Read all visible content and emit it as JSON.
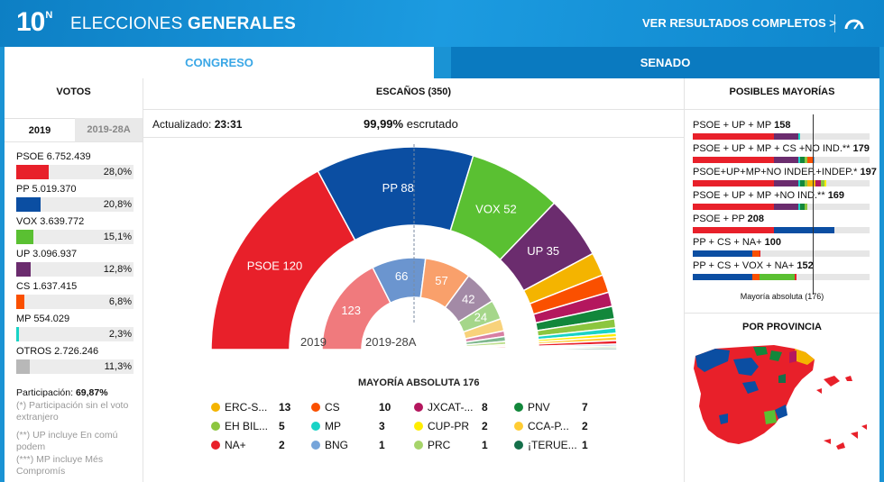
{
  "header": {
    "logo_num": "10",
    "logo_sup": "N",
    "title_light": "ELECCIONES ",
    "title_bold": "GENERALES",
    "results_link": "VER RESULTADOS COMPLETOS >"
  },
  "tabs": [
    {
      "label": "CONGRESO",
      "active": true
    },
    {
      "label": "SENADO",
      "active": false
    }
  ],
  "votes": {
    "heading": "VOTOS",
    "year_tabs": [
      "2019",
      "2019-28A"
    ],
    "parties": [
      {
        "name": "PSOE",
        "votes": "6.752.439",
        "pct": "28,0%",
        "share": 28.0,
        "color": "#e8202a"
      },
      {
        "name": "PP",
        "votes": "5.019.370",
        "pct": "20,8%",
        "share": 20.8,
        "color": "#0b4ea2"
      },
      {
        "name": "VOX",
        "votes": "3.639.772",
        "pct": "15,1%",
        "share": 15.1,
        "color": "#5ac032"
      },
      {
        "name": "UP",
        "votes": "3.096.937",
        "pct": "12,8%",
        "share": 12.8,
        "color": "#6b2c6e"
      },
      {
        "name": "CS",
        "votes": "1.637.415",
        "pct": "6,8%",
        "share": 6.8,
        "color": "#fa5000"
      },
      {
        "name": "MP",
        "votes": "554.029",
        "pct": "2,3%",
        "share": 2.3,
        "color": "#19d3c6"
      },
      {
        "name": "OTROS",
        "votes": "2.726.246",
        "pct": "11,3%",
        "share": 11.3,
        "color": "#b8b8b8"
      }
    ],
    "participation_label": "Participación:",
    "participation_value": "69,87%",
    "notes": [
      "(*) Participación sin el voto extranjero",
      "(**) UP incluye En comú podem",
      "(***) MP incluye Més Compromís"
    ]
  },
  "seats": {
    "heading": "ESCAÑOS (350)",
    "updated_label": "Actualizado:",
    "updated_time": "23:31",
    "scrutiny_pct": "99,99%",
    "scrutiny_label": "escrutado",
    "label_2019": "2019",
    "label_2019_28a": "2019-28A",
    "majority_label": "MAYORÍA ABSOLUTA 176",
    "legend": [
      {
        "name": "ERC-S...",
        "seats": "13",
        "color": "#f4b400"
      },
      {
        "name": "CS",
        "seats": "10",
        "color": "#fa5000"
      },
      {
        "name": "JXCAT-...",
        "seats": "8",
        "color": "#b4175e"
      },
      {
        "name": "PNV",
        "seats": "7",
        "color": "#12873b"
      },
      {
        "name": "EH BIL...",
        "seats": "5",
        "color": "#8cc63f"
      },
      {
        "name": "MP",
        "seats": "3",
        "color": "#19d3c6"
      },
      {
        "name": "CUP-PR",
        "seats": "2",
        "color": "#ffed00"
      },
      {
        "name": "CCA-P...",
        "seats": "2",
        "color": "#ffcc33"
      },
      {
        "name": "NA+",
        "seats": "2",
        "color": "#e8202a"
      },
      {
        "name": "BNG",
        "seats": "1",
        "color": "#76a5da"
      },
      {
        "name": "PRC",
        "seats": "1",
        "color": "#a6d46a"
      },
      {
        "name": "¡TERUE...",
        "seats": "1",
        "color": "#156f4a"
      }
    ]
  },
  "chart_data": [
    {
      "type": "pie",
      "title": "ESCAÑOS (350)",
      "subtitle": "2019",
      "categories": [
        "PSOE",
        "PP",
        "VOX",
        "UP",
        "ERC-S...",
        "CS",
        "JXCAT-...",
        "PNV",
        "EH BIL...",
        "MP",
        "CUP-PR",
        "CCA-P...",
        "NA+",
        "BNG",
        "PRC",
        "¡TERUE..."
      ],
      "values": [
        120,
        88,
        52,
        35,
        13,
        10,
        8,
        7,
        5,
        3,
        2,
        2,
        2,
        1,
        1,
        1
      ],
      "colors": [
        "#e8202a",
        "#0b4ea2",
        "#5ac032",
        "#6b2c6e",
        "#f4b400",
        "#fa5000",
        "#b4175e",
        "#12873b",
        "#8cc63f",
        "#19d3c6",
        "#ffed00",
        "#ffcc33",
        "#e8202a",
        "#76a5da",
        "#a6d46a",
        "#156f4a"
      ],
      "shown_labels": [
        "PSOE 120",
        "PP 88",
        "VOX 52",
        "UP 35"
      ],
      "majority": 176
    },
    {
      "type": "pie",
      "subtitle": "2019-28A",
      "categories": [
        "PSOE",
        "PP",
        "CS",
        "UP",
        "VOX",
        "ERC",
        "JXCAT",
        "PNV",
        "EH BILDU",
        "CCA",
        "NA+",
        "PRC",
        "COMPROMÍS"
      ],
      "values": [
        123,
        66,
        57,
        42,
        24,
        15,
        7,
        6,
        4,
        2,
        2,
        1,
        1
      ],
      "colors": [
        "#f07a7d",
        "#6b95cf",
        "#f9a06b",
        "#a38aa6",
        "#a5d68a",
        "#f8d27b",
        "#d77fa3",
        "#7fb88f",
        "#bfe08f",
        "#ffe08f",
        "#f07a7d",
        "#c9e6a3",
        "#8de5dd"
      ],
      "shown_labels": [
        "123",
        "66",
        "57",
        "42",
        "24"
      ]
    }
  ],
  "majorities": {
    "heading": "POSIBLES MAYORÍAS",
    "threshold": 176,
    "threshold_label": "Mayoría absoluta (176)",
    "rows": [
      {
        "label": "PSOE + UP + MP",
        "total": "158",
        "parts": [
          {
            "v": 120,
            "c": "#e8202a"
          },
          {
            "v": 35,
            "c": "#6b2c6e"
          },
          {
            "v": 3,
            "c": "#19d3c6"
          }
        ]
      },
      {
        "label": "PSOE + UP + MP + CS +NO IND.**",
        "total": "179",
        "parts": [
          {
            "v": 120,
            "c": "#e8202a"
          },
          {
            "v": 35,
            "c": "#6b2c6e"
          },
          {
            "v": 3,
            "c": "#19d3c6"
          },
          {
            "v": 7,
            "c": "#12873b"
          },
          {
            "v": 3,
            "c": "#8cc63f"
          },
          {
            "v": 10,
            "c": "#fa5000"
          },
          {
            "v": 1,
            "c": "#76a5da"
          }
        ]
      },
      {
        "label": "PSOE+UP+MP+NO INDEP.+INDEP.*",
        "total": "197",
        "parts": [
          {
            "v": 120,
            "c": "#e8202a"
          },
          {
            "v": 35,
            "c": "#6b2c6e"
          },
          {
            "v": 3,
            "c": "#19d3c6"
          },
          {
            "v": 7,
            "c": "#12873b"
          },
          {
            "v": 3,
            "c": "#8cc63f"
          },
          {
            "v": 13,
            "c": "#f4b400"
          },
          {
            "v": 8,
            "c": "#b4175e"
          },
          {
            "v": 5,
            "c": "#8cc63f"
          },
          {
            "v": 3,
            "c": "#ffed00"
          }
        ]
      },
      {
        "label": "PSOE + UP + MP +NO IND.**",
        "total": "169",
        "parts": [
          {
            "v": 120,
            "c": "#e8202a"
          },
          {
            "v": 35,
            "c": "#6b2c6e"
          },
          {
            "v": 3,
            "c": "#19d3c6"
          },
          {
            "v": 7,
            "c": "#12873b"
          },
          {
            "v": 4,
            "c": "#8cc63f"
          }
        ]
      },
      {
        "label": "PSOE + PP",
        "total": "208",
        "parts": [
          {
            "v": 120,
            "c": "#e8202a"
          },
          {
            "v": 88,
            "c": "#0b4ea2"
          }
        ]
      },
      {
        "label": "PP + CS + NA+",
        "total": "100",
        "parts": [
          {
            "v": 88,
            "c": "#0b4ea2"
          },
          {
            "v": 10,
            "c": "#fa5000"
          },
          {
            "v": 2,
            "c": "#e8202a"
          }
        ]
      },
      {
        "label": "PP + CS + VOX + NA+",
        "total": "152",
        "parts": [
          {
            "v": 88,
            "c": "#0b4ea2"
          },
          {
            "v": 10,
            "c": "#fa5000"
          },
          {
            "v": 52,
            "c": "#5ac032"
          },
          {
            "v": 2,
            "c": "#e8202a"
          }
        ]
      }
    ]
  },
  "province": {
    "heading": "POR PROVINCIA"
  }
}
